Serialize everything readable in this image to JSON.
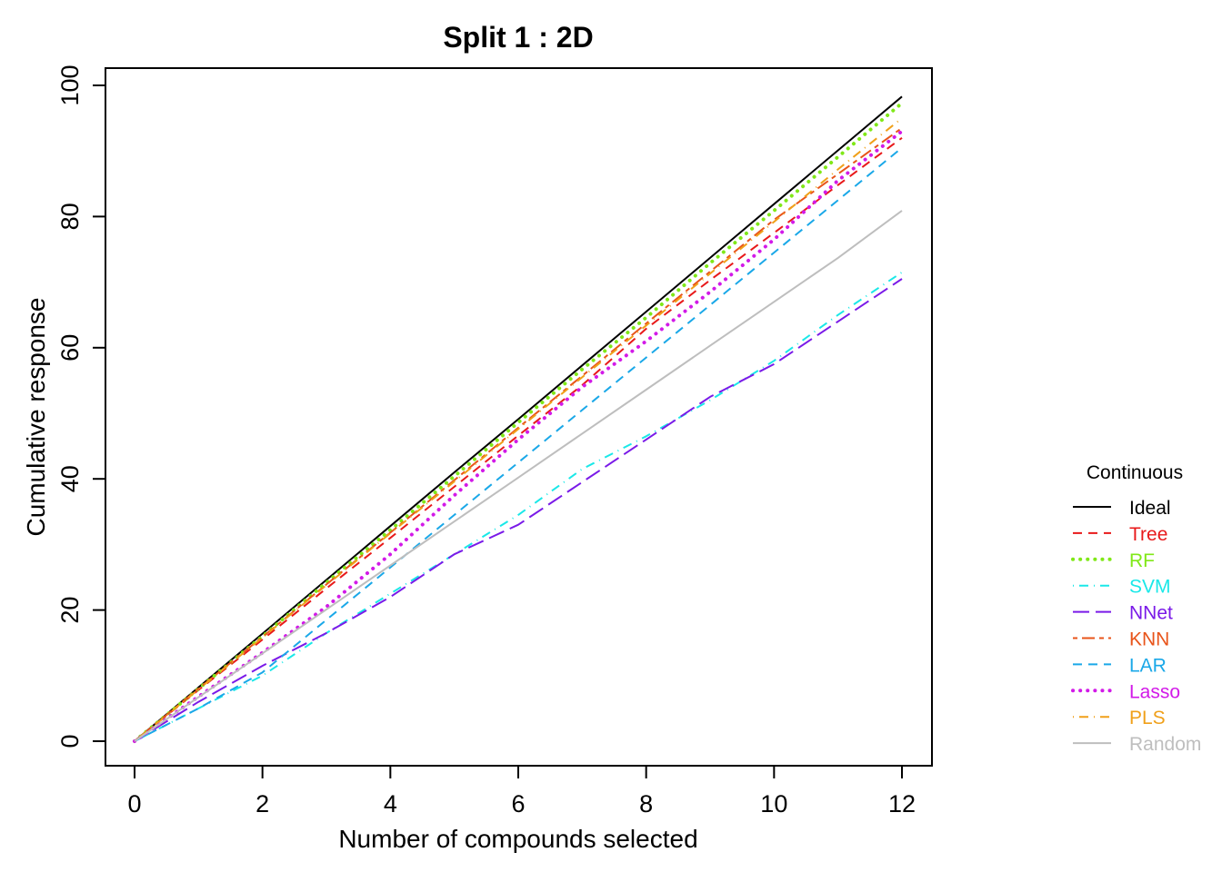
{
  "chart_data": {
    "type": "line",
    "title": "Split 1 : 2D",
    "xlabel": "Number of compounds selected",
    "ylabel": "Cumulative response",
    "xlim": [
      0,
      12
    ],
    "ylim": [
      0,
      100
    ],
    "x_ticks": [
      "0",
      "2",
      "4",
      "6",
      "8",
      "10",
      "12"
    ],
    "y_ticks": [
      "0",
      "20",
      "40",
      "60",
      "80",
      "100"
    ],
    "grid": false,
    "legend": {
      "title": "Continuous",
      "position": "right"
    },
    "x": [
      0,
      1,
      2,
      3,
      4,
      5,
      6,
      7,
      8,
      9,
      10,
      11,
      12
    ],
    "series": [
      {
        "name": "Ideal",
        "color": "#000000",
        "dash": "solid",
        "width": 2,
        "values": [
          0,
          8.2,
          16.4,
          24.6,
          32.8,
          41.0,
          49.1,
          57.3,
          65.5,
          73.7,
          81.9,
          90.1,
          98.3
        ]
      },
      {
        "name": "Tree",
        "color": "#e8191a",
        "dash": "dashed",
        "width": 2,
        "values": [
          0,
          7.8,
          15.5,
          23.3,
          31.0,
          38.8,
          46.6,
          54.3,
          62.9,
          70.3,
          77.5,
          84.8,
          92.0
        ]
      },
      {
        "name": "RF",
        "color": "#80e818",
        "dash": "dotted",
        "width": 4,
        "values": [
          0,
          8.0,
          16.0,
          24.2,
          32.2,
          40.4,
          48.6,
          56.7,
          64.6,
          72.9,
          80.9,
          89.1,
          97.3
        ]
      },
      {
        "name": "SVM",
        "color": "#1ae8e8",
        "dash": "dotdash",
        "width": 2,
        "values": [
          0,
          5.0,
          10.0,
          16.5,
          22.5,
          28.5,
          34.5,
          41.5,
          46.5,
          52.0,
          58.0,
          65.0,
          71.5
        ]
      },
      {
        "name": "NNet",
        "color": "#7a1ae8",
        "dash": "longdash",
        "width": 2,
        "values": [
          0,
          6.0,
          11.5,
          16.5,
          22.0,
          28.5,
          33.0,
          39.5,
          46.0,
          52.5,
          57.5,
          64.0,
          70.5
        ]
      },
      {
        "name": "KNN",
        "color": "#e8541a",
        "dash": "twodash",
        "width": 2,
        "values": [
          0,
          8.0,
          15.9,
          23.9,
          31.8,
          39.8,
          47.8,
          55.7,
          63.7,
          71.6,
          79.5,
          86.5,
          93.5
        ]
      },
      {
        "name": "LAR",
        "color": "#1aa8e8",
        "dash": "dashed",
        "width": 2,
        "values": [
          0,
          5.0,
          10.5,
          18.5,
          26.5,
          34.5,
          42.5,
          50.5,
          58.5,
          66.5,
          74.5,
          82.5,
          90.5
        ]
      },
      {
        "name": "Lasso",
        "color": "#d21ae8",
        "dash": "dotted",
        "width": 4,
        "values": [
          0,
          6.8,
          13.5,
          20.5,
          28.5,
          37.5,
          46.0,
          54.0,
          61.0,
          68.5,
          76.5,
          85.5,
          93.0
        ]
      },
      {
        "name": "PLS",
        "color": "#f0a01a",
        "dash": "dotdash",
        "width": 2,
        "values": [
          0,
          7.9,
          15.8,
          23.8,
          31.7,
          39.6,
          47.6,
          55.5,
          63.4,
          71.3,
          79.2,
          87.2,
          95.0
        ]
      },
      {
        "name": "Random",
        "color": "#bebebe",
        "dash": "solid",
        "width": 2,
        "values": [
          0,
          6.7,
          13.4,
          20.1,
          26.8,
          33.5,
          40.2,
          46.9,
          53.6,
          60.3,
          67.0,
          73.7,
          80.9
        ]
      }
    ]
  }
}
